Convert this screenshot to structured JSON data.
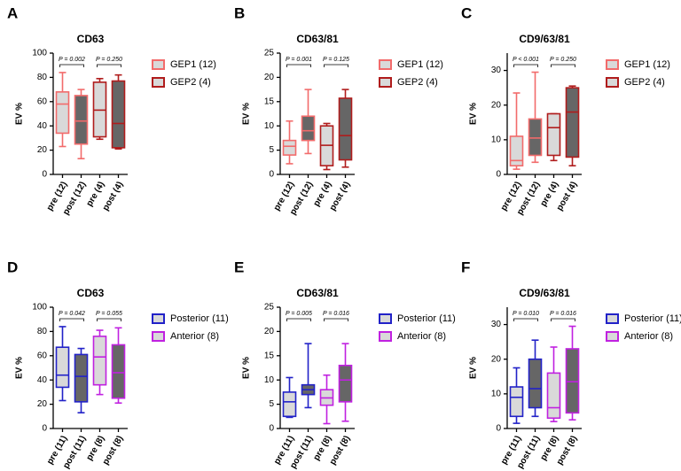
{
  "chart_data": [
    {
      "type": "box",
      "panel": "A",
      "title": "CD63",
      "ylabel": "EV %",
      "ylim": [
        0,
        100
      ],
      "yticks": [
        0,
        20,
        40,
        60,
        80,
        100
      ],
      "categories": [
        "pre (12)",
        "post (12)",
        "pre (4)",
        "post (4)"
      ],
      "series": [
        {
          "name": "GEP1 (12)",
          "color": "#f26b6b"
        },
        {
          "name": "GEP2 (4)",
          "color": "#b01c1c"
        }
      ],
      "boxes": [
        {
          "min": 23,
          "q1": 34,
          "median": 58,
          "q3": 68,
          "max": 84,
          "color": "#f26b6b",
          "fill": "#d9d9d9"
        },
        {
          "min": 13,
          "q1": 25,
          "median": 44,
          "q3": 65,
          "max": 70,
          "color": "#f26b6b",
          "fill": "#666666"
        },
        {
          "min": 29,
          "q1": 31,
          "median": 53,
          "q3": 76,
          "max": 79,
          "color": "#b01c1c",
          "fill": "#d9d9d9"
        },
        {
          "min": 21,
          "q1": 22,
          "median": 42,
          "q3": 77,
          "max": 82,
          "color": "#b01c1c",
          "fill": "#666666"
        }
      ],
      "annotations": [
        "P = 0.002",
        "P = 0.250"
      ]
    },
    {
      "type": "box",
      "panel": "B",
      "title": "CD63/81",
      "ylabel": "EV %",
      "ylim": [
        0,
        25
      ],
      "yticks": [
        0,
        5,
        10,
        15,
        20,
        25
      ],
      "categories": [
        "pre (12)",
        "post (12)",
        "pre (4)",
        "post (4)"
      ],
      "series": [
        {
          "name": "GEP1 (12)",
          "color": "#f26b6b"
        },
        {
          "name": "GEP2 (4)",
          "color": "#b01c1c"
        }
      ],
      "boxes": [
        {
          "min": 2.2,
          "q1": 4,
          "median": 5.8,
          "q3": 7,
          "max": 11,
          "color": "#f26b6b",
          "fill": "#d9d9d9"
        },
        {
          "min": 4.3,
          "q1": 7,
          "median": 9,
          "q3": 12,
          "max": 17.5,
          "color": "#f26b6b",
          "fill": "#666666"
        },
        {
          "min": 1,
          "q1": 1.8,
          "median": 6,
          "q3": 10,
          "max": 10.5,
          "color": "#b01c1c",
          "fill": "#d9d9d9"
        },
        {
          "min": 1.5,
          "q1": 3,
          "median": 8,
          "q3": 15.7,
          "max": 17.5,
          "color": "#b01c1c",
          "fill": "#666666"
        }
      ],
      "annotations": [
        "P = 0.001",
        "P = 0.125"
      ]
    },
    {
      "type": "box",
      "panel": "C",
      "title": "CD9/63/81",
      "ylabel": "EV %",
      "ylim": [
        0,
        35
      ],
      "yticks": [
        0,
        10,
        20,
        30
      ],
      "categories": [
        "pre (12)",
        "post (12)",
        "pre (4)",
        "post (4)"
      ],
      "series": [
        {
          "name": "GEP1 (12)",
          "color": "#f26b6b"
        },
        {
          "name": "GEP2 (4)",
          "color": "#b01c1c"
        }
      ],
      "boxes": [
        {
          "min": 1.5,
          "q1": 2.5,
          "median": 4,
          "q3": 11,
          "max": 23.5,
          "color": "#f26b6b",
          "fill": "#d9d9d9"
        },
        {
          "min": 3.5,
          "q1": 5.5,
          "median": 10.5,
          "q3": 16,
          "max": 29.5,
          "color": "#f26b6b",
          "fill": "#666666"
        },
        {
          "min": 4,
          "q1": 5.5,
          "median": 13.5,
          "q3": 17.5,
          "max": 17.5,
          "color": "#b01c1c",
          "fill": "#d9d9d9"
        },
        {
          "min": 2.5,
          "q1": 5,
          "median": 18,
          "q3": 25,
          "max": 25.5,
          "color": "#b01c1c",
          "fill": "#666666"
        }
      ],
      "annotations": [
        "P < 0.001",
        "P = 0.250"
      ]
    },
    {
      "type": "box",
      "panel": "D",
      "title": "CD63",
      "ylabel": "EV %",
      "ylim": [
        0,
        100
      ],
      "yticks": [
        0,
        20,
        40,
        60,
        80,
        100
      ],
      "categories": [
        "pre (11)",
        "post (11)",
        "pre (8)",
        "post (8)"
      ],
      "series": [
        {
          "name": "Posterior (11)",
          "color": "#2222c8"
        },
        {
          "name": "Anterior (8)",
          "color": "#c021e0"
        }
      ],
      "boxes": [
        {
          "min": 23,
          "q1": 34,
          "median": 44,
          "q3": 67,
          "max": 84,
          "color": "#2222c8",
          "fill": "#d9d9d9"
        },
        {
          "min": 13,
          "q1": 22,
          "median": 43,
          "q3": 61,
          "max": 66,
          "color": "#2222c8",
          "fill": "#666666"
        },
        {
          "min": 28,
          "q1": 36,
          "median": 59,
          "q3": 76,
          "max": 81,
          "color": "#c021e0",
          "fill": "#d9d9d9"
        },
        {
          "min": 21,
          "q1": 25,
          "median": 46,
          "q3": 69,
          "max": 83,
          "color": "#c021e0",
          "fill": "#666666"
        }
      ],
      "annotations": [
        "P = 0.042",
        "P = 0.055"
      ]
    },
    {
      "type": "box",
      "panel": "E",
      "title": "CD63/81",
      "ylabel": "EV %",
      "ylim": [
        0,
        25
      ],
      "yticks": [
        0,
        5,
        10,
        15,
        20,
        25
      ],
      "categories": [
        "pre (11)",
        "post (11)",
        "pre (8)",
        "post (8)"
      ],
      "series": [
        {
          "name": "Posterior (11)",
          "color": "#2222c8"
        },
        {
          "name": "Anterior (8)",
          "color": "#c021e0"
        }
      ],
      "boxes": [
        {
          "min": 2.3,
          "q1": 2.5,
          "median": 5.5,
          "q3": 7.5,
          "max": 10.5,
          "color": "#2222c8",
          "fill": "#d9d9d9"
        },
        {
          "min": 4.3,
          "q1": 7,
          "median": 8,
          "q3": 9,
          "max": 17.5,
          "color": "#2222c8",
          "fill": "#666666"
        },
        {
          "min": 1,
          "q1": 4.8,
          "median": 6.3,
          "q3": 8,
          "max": 11,
          "color": "#c021e0",
          "fill": "#d9d9d9"
        },
        {
          "min": 1.5,
          "q1": 5.5,
          "median": 10,
          "q3": 13,
          "max": 17.5,
          "color": "#c021e0",
          "fill": "#666666"
        }
      ],
      "annotations": [
        "P = 0.005",
        "P = 0.016"
      ]
    },
    {
      "type": "box",
      "panel": "F",
      "title": "CD9/63/81",
      "ylabel": "EV %",
      "ylim": [
        0,
        35
      ],
      "yticks": [
        0,
        10,
        20,
        30
      ],
      "categories": [
        "pre (11)",
        "post (11)",
        "pre (8)",
        "post (8)"
      ],
      "series": [
        {
          "name": "Posterior (11)",
          "color": "#2222c8"
        },
        {
          "name": "Anterior (8)",
          "color": "#c021e0"
        }
      ],
      "boxes": [
        {
          "min": 1.5,
          "q1": 3.5,
          "median": 9,
          "q3": 12,
          "max": 17.5,
          "color": "#2222c8",
          "fill": "#d9d9d9"
        },
        {
          "min": 3.5,
          "q1": 6,
          "median": 11.5,
          "q3": 20,
          "max": 25.5,
          "color": "#2222c8",
          "fill": "#666666"
        },
        {
          "min": 2,
          "q1": 3,
          "median": 6,
          "q3": 16,
          "max": 23.5,
          "color": "#c021e0",
          "fill": "#d9d9d9"
        },
        {
          "min": 2.5,
          "q1": 4.5,
          "median": 13.5,
          "q3": 23,
          "max": 29.5,
          "color": "#c021e0",
          "fill": "#666666"
        }
      ],
      "annotations": [
        "P = 0.010",
        "P = 0.016"
      ]
    }
  ]
}
